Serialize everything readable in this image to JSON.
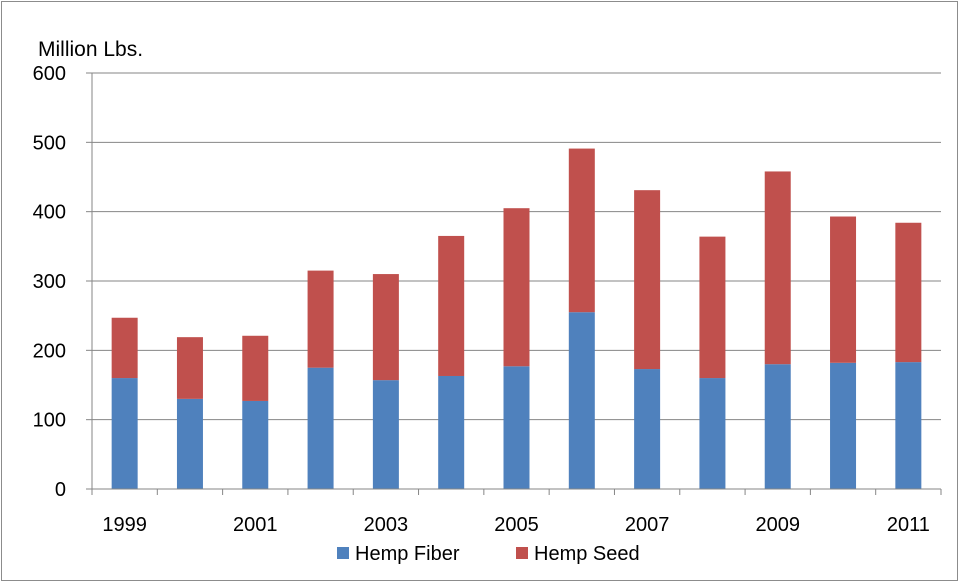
{
  "chart_data": {
    "type": "bar",
    "stacked": true,
    "ylabel": "Million Lbs.",
    "ylim": [
      0,
      600
    ],
    "yticks": [
      0,
      100,
      200,
      300,
      400,
      500,
      600
    ],
    "categories": [
      "1999",
      "2000",
      "2001",
      "2002",
      "2003",
      "2004",
      "2005",
      "2006",
      "2007",
      "2008",
      "2009",
      "2010",
      "2011"
    ],
    "x_tick_labels": [
      "1999",
      "",
      "2001",
      "",
      "2003",
      "",
      "2005",
      "",
      "2007",
      "",
      "2009",
      "",
      "2011"
    ],
    "grid": "horizontal",
    "legend_position": "bottom",
    "series": [
      {
        "name": "Hemp Fiber",
        "color": "#4f81bd",
        "values": [
          160,
          130,
          127,
          175,
          157,
          163,
          177,
          255,
          173,
          160,
          180,
          182,
          183
        ]
      },
      {
        "name": "Hemp Seed",
        "color": "#c0504d",
        "values": [
          87,
          89,
          94,
          140,
          153,
          202,
          228,
          236,
          258,
          204,
          278,
          211,
          201
        ]
      }
    ]
  }
}
